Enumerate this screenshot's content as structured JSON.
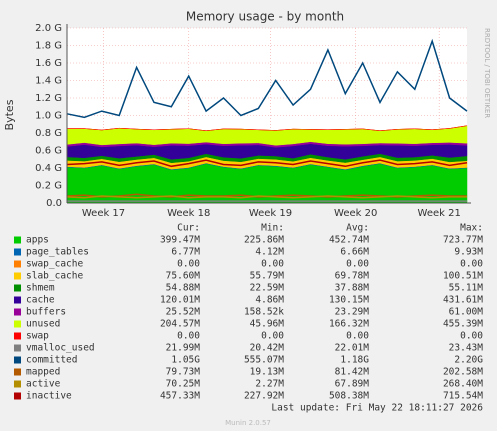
{
  "chart_data": {
    "type": "area",
    "title": "Memory usage - by month",
    "y_label": "Bytes",
    "side_label": "RRDTOOL / TOBI OETIKER",
    "xlim": [
      0,
      23
    ],
    "xticks": [
      {
        "value": 2.1,
        "label": "Week 17"
      },
      {
        "value": 7,
        "label": "Week 18"
      },
      {
        "value": 11.7,
        "label": "Week 19"
      },
      {
        "value": 16.6,
        "label": "Week 20"
      },
      {
        "value": 21.4,
        "label": "Week 21"
      }
    ],
    "ylim": [
      0,
      2.0
    ],
    "yticks": [
      {
        "value": 0,
        "label": "0.0"
      },
      {
        "value": 0.2,
        "label": "0.2 G"
      },
      {
        "value": 0.4,
        "label": "0.4 G"
      },
      {
        "value": 0.6,
        "label": "0.6 G"
      },
      {
        "value": 0.8,
        "label": "0.8 G"
      },
      {
        "value": 1.0,
        "label": "1.0 G"
      },
      {
        "value": 1.2,
        "label": "1.2 G"
      },
      {
        "value": 1.4,
        "label": "1.4 G"
      },
      {
        "value": 1.6,
        "label": "1.6 G"
      },
      {
        "value": 1.8,
        "label": "1.8 G"
      },
      {
        "value": 2.0,
        "label": "2.0 G"
      }
    ],
    "grid": true,
    "columns": [
      "Cur:",
      "Min:",
      "Avg:",
      "Max:"
    ],
    "series": [
      {
        "name": "apps",
        "color": "#00cc00",
        "style": "area",
        "cur": "399.47M",
        "min": "225.86M",
        "avg": "452.74M",
        "max": "723.77M",
        "values": [
          0.41,
          0.4,
          0.43,
          0.39,
          0.42,
          0.44,
          0.38,
          0.4,
          0.45,
          0.41,
          0.39,
          0.43,
          0.42,
          0.4,
          0.44,
          0.41,
          0.38,
          0.42,
          0.45,
          0.4,
          0.41,
          0.43,
          0.39,
          0.4
        ]
      },
      {
        "name": "page_tables",
        "color": "#0066b3",
        "style": "area",
        "cur": "6.77M",
        "min": "4.12M",
        "avg": "6.66M",
        "max": "9.93M",
        "values": [
          0.007,
          0.007,
          0.007,
          0.007,
          0.007,
          0.007,
          0.007,
          0.007,
          0.007,
          0.007,
          0.007,
          0.007,
          0.007,
          0.007,
          0.007,
          0.007,
          0.007,
          0.007,
          0.007,
          0.007,
          0.007,
          0.007,
          0.007,
          0.007
        ]
      },
      {
        "name": "swap_cache",
        "color": "#ff8000",
        "style": "area",
        "cur": "0.00",
        "min": "0.00",
        "avg": "0.00",
        "max": "0.00",
        "values": [
          0,
          0,
          0,
          0,
          0,
          0,
          0,
          0,
          0,
          0,
          0,
          0,
          0,
          0,
          0,
          0,
          0,
          0,
          0,
          0,
          0,
          0,
          0,
          0
        ]
      },
      {
        "name": "slab_cache",
        "color": "#ffcc00",
        "style": "area",
        "cur": "75.60M",
        "min": "55.79M",
        "avg": "69.78M",
        "max": "100.51M",
        "values": [
          0.07,
          0.072,
          0.068,
          0.075,
          0.07,
          0.069,
          0.073,
          0.071,
          0.07,
          0.068,
          0.074,
          0.07,
          0.072,
          0.069,
          0.071,
          0.07,
          0.075,
          0.068,
          0.07,
          0.072,
          0.07,
          0.071,
          0.073,
          0.076
        ]
      },
      {
        "name": "shmem",
        "color": "#008f00",
        "style": "area",
        "cur": "54.88M",
        "min": "22.59M",
        "avg": "37.88M",
        "max": "55.11M",
        "values": [
          0.04,
          0.038,
          0.036,
          0.04,
          0.035,
          0.037,
          0.04,
          0.038,
          0.036,
          0.039,
          0.04,
          0.037,
          0.038,
          0.036,
          0.04,
          0.038,
          0.037,
          0.039,
          0.036,
          0.04,
          0.038,
          0.037,
          0.05,
          0.055
        ]
      },
      {
        "name": "cache",
        "color": "#330099",
        "style": "area",
        "cur": "120.01M",
        "min": "4.86M",
        "avg": "130.15M",
        "max": "431.61M",
        "values": [
          0.12,
          0.15,
          0.1,
          0.14,
          0.13,
          0.09,
          0.16,
          0.14,
          0.11,
          0.13,
          0.15,
          0.12,
          0.1,
          0.14,
          0.12,
          0.13,
          0.15,
          0.12,
          0.1,
          0.14,
          0.13,
          0.12,
          0.15,
          0.12
        ]
      },
      {
        "name": "buffers",
        "color": "#990099",
        "style": "area",
        "cur": "25.52M",
        "min": "158.52k",
        "avg": "23.29M",
        "max": "61.00M",
        "values": [
          0.023,
          0.023,
          0.023,
          0.023,
          0.023,
          0.023,
          0.023,
          0.023,
          0.023,
          0.023,
          0.023,
          0.023,
          0.023,
          0.023,
          0.023,
          0.023,
          0.023,
          0.023,
          0.023,
          0.023,
          0.023,
          0.023,
          0.023,
          0.025
        ]
      },
      {
        "name": "unused",
        "color": "#ccff00",
        "style": "area",
        "cur": "204.57M",
        "min": "45.96M",
        "avg": "166.32M",
        "max": "455.39M",
        "values": [
          0.18,
          0.16,
          0.17,
          0.18,
          0.16,
          0.17,
          0.16,
          0.17,
          0.13,
          0.17,
          0.16,
          0.15,
          0.17,
          0.17,
          0.14,
          0.16,
          0.17,
          0.17,
          0.14,
          0.16,
          0.17,
          0.15,
          0.16,
          0.2
        ]
      },
      {
        "name": "swap",
        "color": "#ff0000",
        "style": "area",
        "cur": "0.00",
        "min": "0.00",
        "avg": "0.00",
        "max": "0.00",
        "values": [
          0,
          0,
          0,
          0,
          0,
          0,
          0,
          0,
          0,
          0,
          0,
          0,
          0,
          0,
          0,
          0,
          0,
          0,
          0,
          0,
          0,
          0,
          0,
          0
        ]
      },
      {
        "name": "vmalloc_used",
        "color": "#808080",
        "style": "line",
        "cur": "21.99M",
        "min": "20.42M",
        "avg": "22.01M",
        "max": "23.43M",
        "values": [
          0.022,
          0.022,
          0.022,
          0.022,
          0.022,
          0.022,
          0.022,
          0.022,
          0.022,
          0.022,
          0.022,
          0.022,
          0.022,
          0.022,
          0.022,
          0.022,
          0.022,
          0.022,
          0.022,
          0.022,
          0.022,
          0.022,
          0.022,
          0.022
        ]
      },
      {
        "name": "committed",
        "color": "#00487d",
        "style": "line",
        "cur": "1.05G",
        "min": "555.07M",
        "avg": "1.18G",
        "max": "2.20G",
        "values": [
          1.02,
          0.98,
          1.05,
          1.0,
          1.55,
          1.15,
          1.1,
          1.45,
          1.05,
          1.2,
          1.0,
          1.08,
          1.4,
          1.12,
          1.3,
          1.75,
          1.25,
          1.6,
          1.15,
          1.5,
          1.3,
          1.85,
          1.2,
          1.05
        ]
      },
      {
        "name": "mapped",
        "color": "#b35a00",
        "style": "line",
        "cur": "79.73M",
        "min": "19.13M",
        "avg": "81.42M",
        "max": "202.58M",
        "values": [
          0.08,
          0.09,
          0.07,
          0.08,
          0.1,
          0.08,
          0.07,
          0.09,
          0.08,
          0.08,
          0.09,
          0.07,
          0.08,
          0.09,
          0.08,
          0.07,
          0.08,
          0.09,
          0.08,
          0.07,
          0.08,
          0.09,
          0.08,
          0.08
        ]
      },
      {
        "name": "active",
        "color": "#b38f00",
        "style": "line",
        "cur": "70.25M",
        "min": "2.27M",
        "avg": "67.89M",
        "max": "268.40M",
        "values": [
          0.07,
          0.06,
          0.08,
          0.07,
          0.06,
          0.07,
          0.08,
          0.06,
          0.07,
          0.07,
          0.06,
          0.08,
          0.07,
          0.06,
          0.07,
          0.08,
          0.07,
          0.06,
          0.07,
          0.08,
          0.07,
          0.06,
          0.07,
          0.07
        ]
      },
      {
        "name": "inactive",
        "color": "#b30000",
        "style": "line",
        "cur": "457.33M",
        "min": "227.92M",
        "avg": "508.38M",
        "max": "715.54M",
        "values": [
          0.44,
          0.45,
          0.47,
          0.43,
          0.46,
          0.48,
          0.42,
          0.45,
          0.49,
          0.44,
          0.43,
          0.47,
          0.46,
          0.44,
          0.48,
          0.45,
          0.42,
          0.46,
          0.49,
          0.44,
          0.45,
          0.47,
          0.43,
          0.46
        ]
      }
    ],
    "last_update": "Last update: Fri May 22 18:11:27 2026",
    "footer": "Munin 2.0.57"
  }
}
